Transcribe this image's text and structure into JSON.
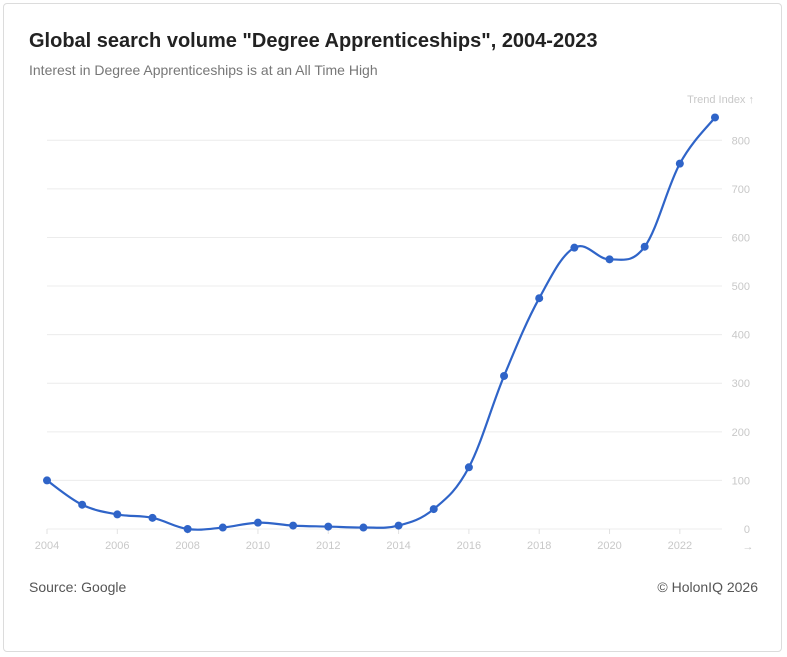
{
  "header": {
    "title": "Global search volume \"Degree Apprenticeships\", 2004-2023",
    "subtitle": "Interest in Degree Apprenticeships is at an All Time High"
  },
  "footer": {
    "source": "Source: Google",
    "copyright": "© HolonIQ 2026"
  },
  "chart_data": {
    "type": "line",
    "ylabel": "Trend Index ↑",
    "x_arrow": "→",
    "x": [
      2004,
      2005,
      2006,
      2007,
      2008,
      2009,
      2010,
      2011,
      2012,
      2013,
      2014,
      2015,
      2016,
      2017,
      2018,
      2019,
      2020,
      2021,
      2022,
      2023
    ],
    "x_ticks": [
      2004,
      2006,
      2008,
      2010,
      2012,
      2014,
      2016,
      2018,
      2020,
      2022
    ],
    "values": [
      100,
      50,
      30,
      23,
      0,
      3,
      13,
      7,
      5,
      3,
      7,
      41,
      127,
      315,
      475,
      579,
      555,
      581,
      752,
      847
    ],
    "y_ticks": [
      0,
      100,
      200,
      300,
      400,
      500,
      600,
      700,
      800
    ],
    "xlim": [
      2004,
      2023
    ],
    "ylim": [
      0,
      850
    ],
    "grid": true,
    "color": "#2f64c8",
    "gridline_color": "#ececec"
  }
}
